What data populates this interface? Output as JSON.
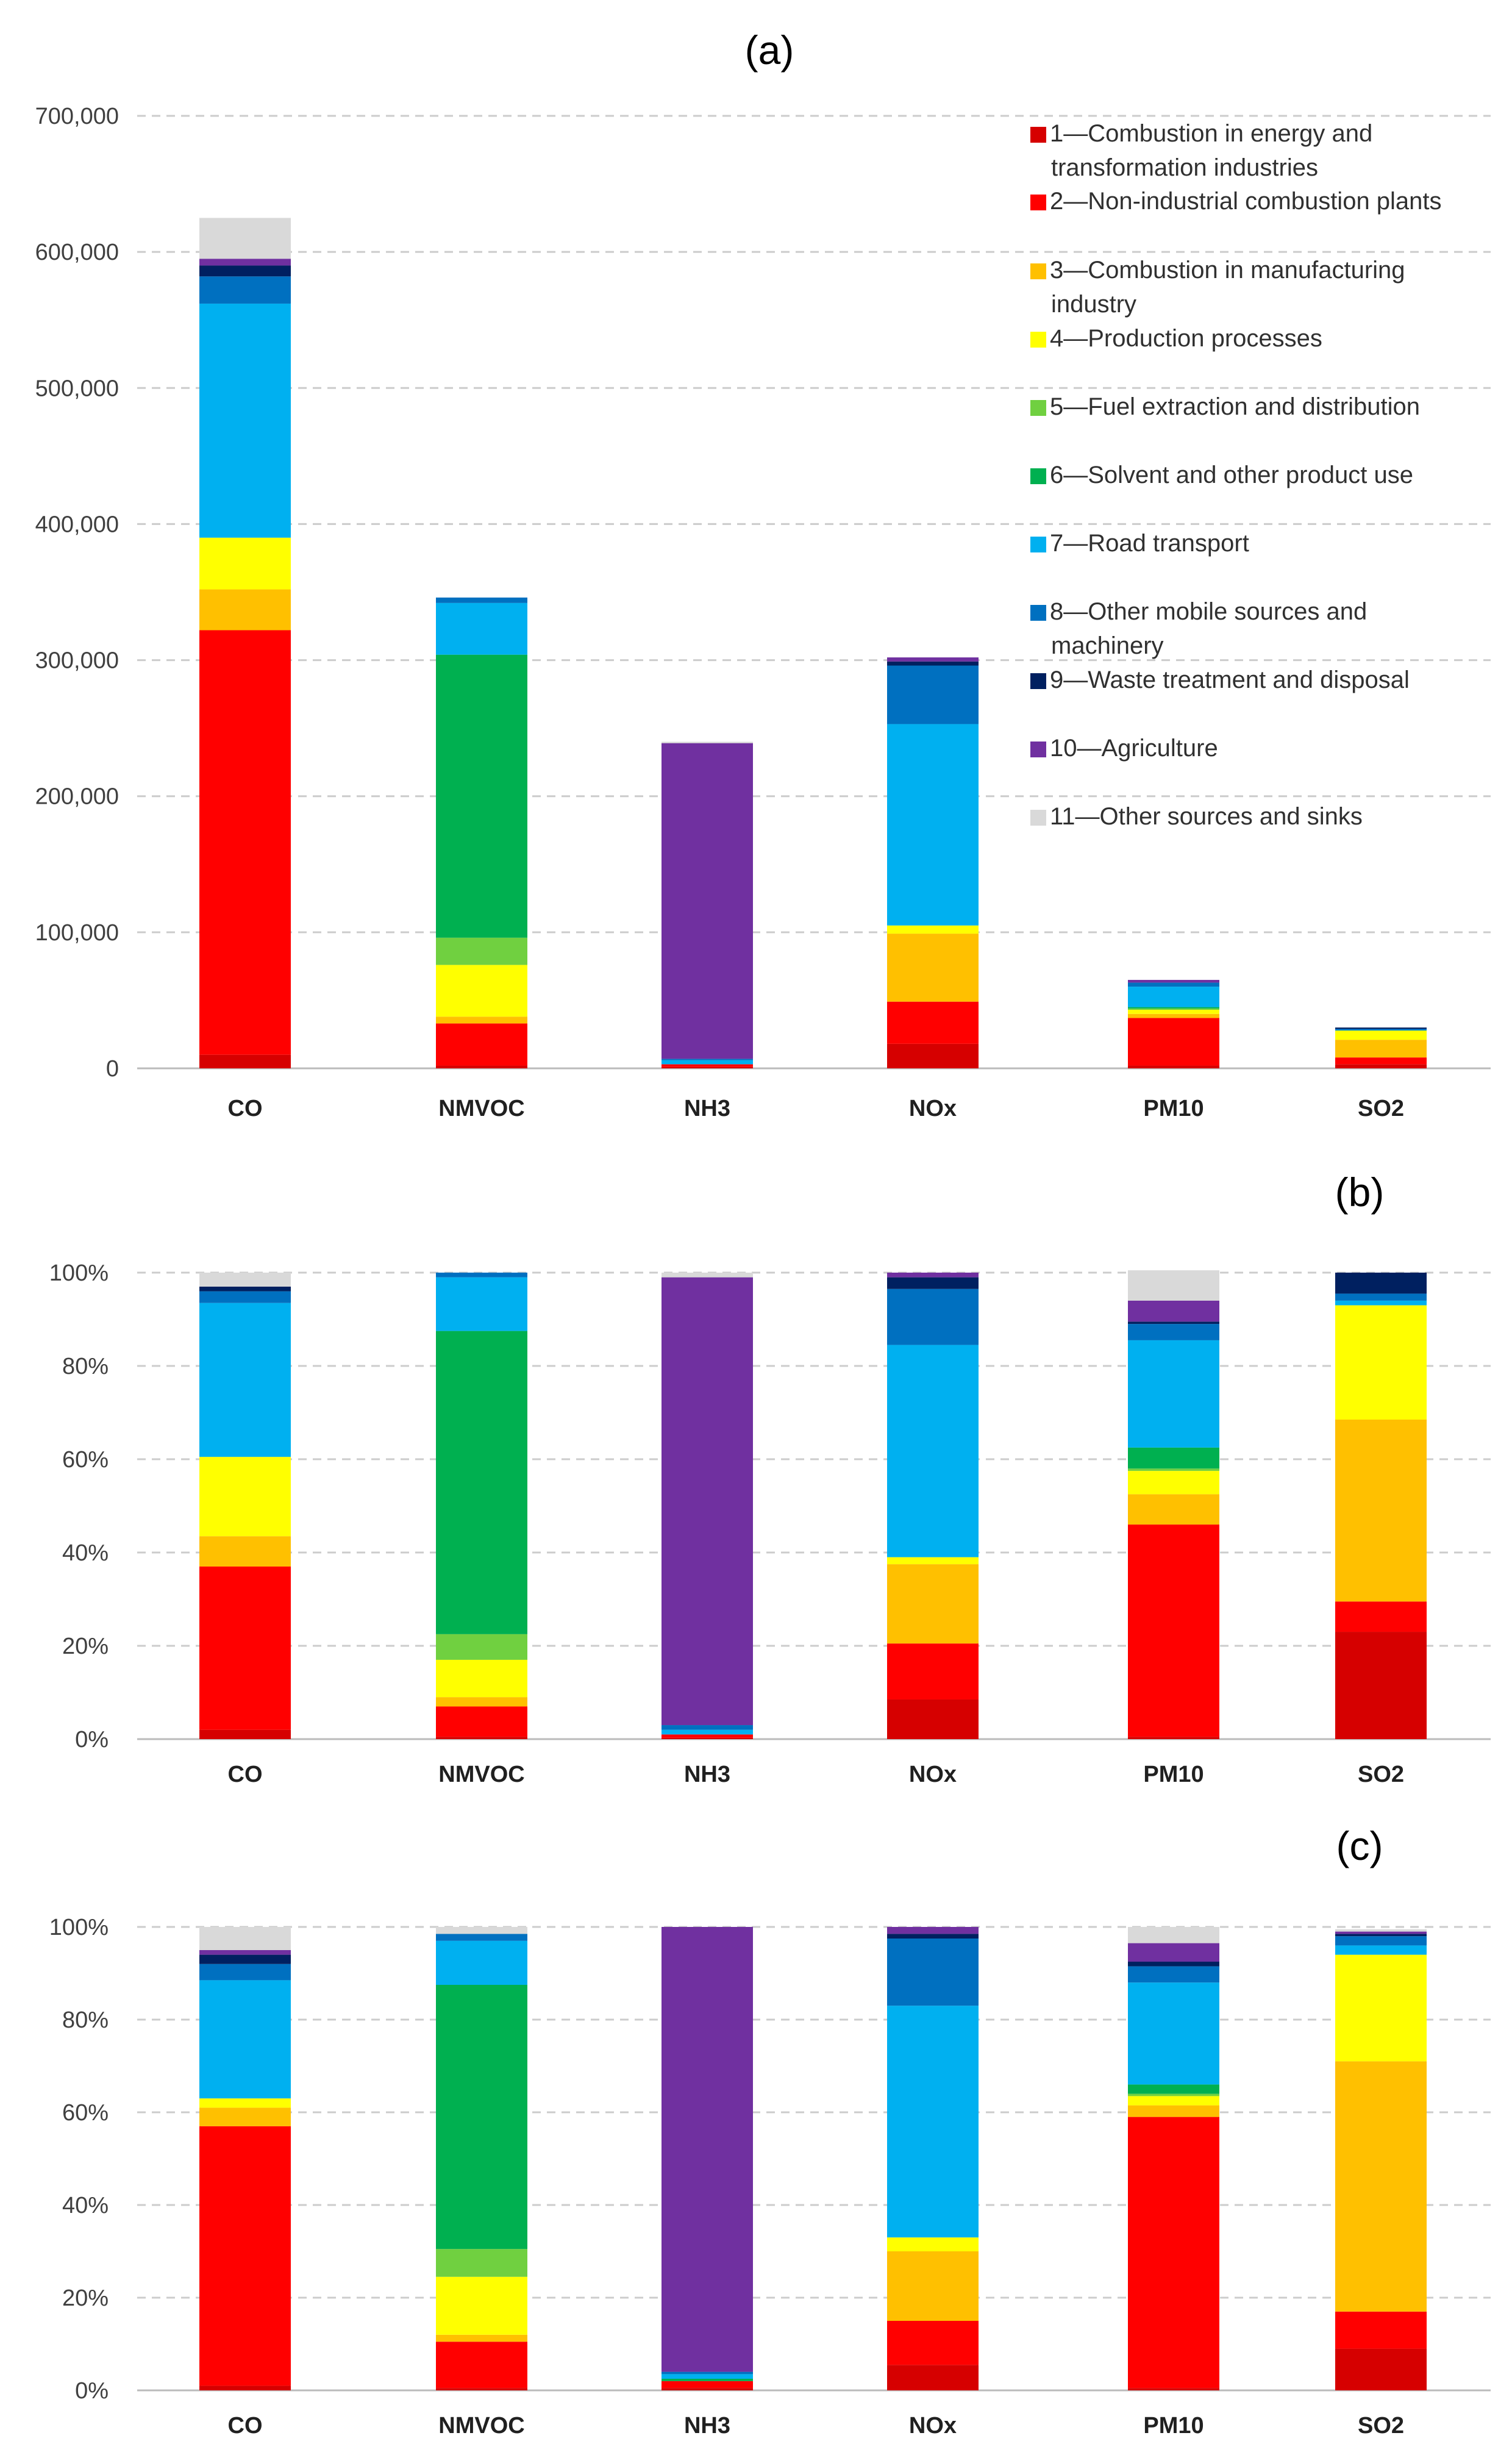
{
  "source_categories": [
    {
      "id": "s1",
      "color": "#d60000",
      "lines": [
        "1—Combustion in energy and",
        "transformation industries"
      ]
    },
    {
      "id": "s2",
      "color": "#ff0000",
      "lines": [
        "2—Non-industrial combustion plants"
      ]
    },
    {
      "id": "s3",
      "color": "#ffc000",
      "lines": [
        "3—Combustion in manufacturing",
        "industry"
      ]
    },
    {
      "id": "s4",
      "color": "#ffff00",
      "lines": [
        "4—Production processes"
      ]
    },
    {
      "id": "s5",
      "color": "#70d040",
      "lines": [
        "5—Fuel extraction and distribution"
      ]
    },
    {
      "id": "s6",
      "color": "#00b050",
      "lines": [
        "6—Solvent and other product use"
      ]
    },
    {
      "id": "s7",
      "color": "#00b0f0",
      "lines": [
        "7—Road transport"
      ]
    },
    {
      "id": "s8",
      "color": "#0070c0",
      "lines": [
        "8—Other mobile sources and",
        "machinery"
      ]
    },
    {
      "id": "s9",
      "color": "#002060",
      "lines": [
        "9—Waste treatment and disposal"
      ]
    },
    {
      "id": "s10",
      "color": "#7030a0",
      "lines": [
        "10—Agriculture"
      ]
    },
    {
      "id": "s11",
      "color": "#d9d9d9",
      "lines": [
        "11—Other sources and sinks"
      ]
    }
  ],
  "chart_data": [
    {
      "type": "bar",
      "stacked": true,
      "panel_label": "(a)",
      "categories": [
        "CO",
        "NMVOC",
        "NH3",
        "NOx",
        "PM10",
        "SO2"
      ],
      "ylim": [
        0,
        700000
      ],
      "yticks": [
        "0",
        "100,000",
        "200,000",
        "300,000",
        "400,000",
        "500,000",
        "600,000",
        "700,000"
      ],
      "ytick_values": [
        0,
        100000,
        200000,
        300000,
        400000,
        500000,
        600000,
        700000
      ],
      "grid": true,
      "legend": "top-right",
      "series": [
        {
          "name": "1—Combustion in energy and transformation industries",
          "values": [
            10000,
            2000,
            1000,
            18000,
            2000,
            3000
          ]
        },
        {
          "name": "2—Non-industrial combustion plants",
          "values": [
            312000,
            31000,
            2000,
            31000,
            35000,
            5000
          ]
        },
        {
          "name": "3—Combustion in manufacturing industry",
          "values": [
            30000,
            5000,
            0,
            50000,
            3000,
            13000
          ]
        },
        {
          "name": "4—Production processes",
          "values": [
            38000,
            38000,
            0,
            6000,
            3000,
            7000
          ]
        },
        {
          "name": "5—Fuel extraction and distribution",
          "values": [
            0,
            20000,
            0,
            0,
            1000,
            0
          ]
        },
        {
          "name": "6—Solvent and other product use",
          "values": [
            0,
            208000,
            0,
            0,
            1000,
            0
          ]
        },
        {
          "name": "7—Road transport",
          "values": [
            172000,
            38000,
            3000,
            148000,
            15000,
            0.5
          ]
        },
        {
          "name": "8—Other mobile sources and machinery",
          "values": [
            20000,
            4000,
            1000,
            43000,
            3000,
            1000
          ]
        },
        {
          "name": "9—Waste treatment and disposal",
          "values": [
            8000,
            0,
            0,
            3000,
            0,
            1000
          ]
        },
        {
          "name": "10—Agriculture",
          "values": [
            5000,
            0,
            232000,
            3000,
            2000,
            0
          ]
        },
        {
          "name": "11—Other sources and sinks",
          "values": [
            30000,
            0,
            1000,
            0,
            0,
            0
          ]
        }
      ]
    },
    {
      "type": "bar",
      "stacked": true,
      "panel_label": "(b)",
      "categories": [
        "CO",
        "NMVOC",
        "NH3",
        "NOx",
        "PM10",
        "SO2"
      ],
      "ylim": [
        0,
        100
      ],
      "yticks": [
        "0%",
        "20%",
        "40%",
        "60%",
        "80%",
        "100%"
      ],
      "ytick_values": [
        0,
        20,
        40,
        60,
        80,
        100
      ],
      "grid": true,
      "series": [
        {
          "name": "1—Combustion in energy and transformation industries",
          "values": [
            2,
            0.5,
            0.3,
            8.5,
            0.5,
            23
          ]
        },
        {
          "name": "2—Non-industrial combustion plants",
          "values": [
            35,
            6.5,
            0.7,
            12,
            45.5,
            6.5
          ]
        },
        {
          "name": "3—Combustion in manufacturing industry",
          "values": [
            6.5,
            2,
            0,
            17,
            6.5,
            39
          ]
        },
        {
          "name": "4—Production processes",
          "values": [
            17,
            8,
            0,
            1.5,
            5,
            24.5
          ]
        },
        {
          "name": "5—Fuel extraction and distribution",
          "values": [
            0,
            5.5,
            0,
            0,
            0.5,
            0
          ]
        },
        {
          "name": "6—Solvent and other product use",
          "values": [
            0,
            65,
            0,
            0,
            4.5,
            0
          ]
        },
        {
          "name": "7—Road transport",
          "values": [
            33,
            11.5,
            1,
            45.5,
            23,
            1
          ]
        },
        {
          "name": "8—Other mobile sources and machinery",
          "values": [
            2.5,
            1,
            1,
            12,
            3.5,
            1.5
          ]
        },
        {
          "name": "9—Waste treatment and disposal",
          "values": [
            1,
            0,
            0,
            2.5,
            0.5,
            4.5
          ]
        },
        {
          "name": "10—Agriculture",
          "values": [
            0,
            0,
            96,
            1,
            4.5,
            0
          ]
        },
        {
          "name": "11—Other sources and sinks",
          "values": [
            3,
            0,
            1,
            0,
            6.5,
            0
          ]
        }
      ]
    },
    {
      "type": "bar",
      "stacked": true,
      "panel_label": "(c)",
      "categories": [
        "CO",
        "NMVOC",
        "NH3",
        "NOx",
        "PM10",
        "SO2"
      ],
      "ylim": [
        0,
        100
      ],
      "yticks": [
        "0%",
        "20%",
        "40%",
        "60%",
        "80%",
        "100%"
      ],
      "ytick_values": [
        0,
        20,
        40,
        60,
        80,
        100
      ],
      "grid": true,
      "series": [
        {
          "name": "1—Combustion in energy and transformation industries",
          "values": [
            1,
            0.5,
            0.5,
            5.5,
            0.5,
            9
          ]
        },
        {
          "name": "2—Non-industrial combustion plants",
          "values": [
            56,
            10,
            1.5,
            9.5,
            58.5,
            8
          ]
        },
        {
          "name": "3—Combustion in manufacturing industry",
          "values": [
            4,
            1.5,
            0,
            15,
            2.5,
            54
          ]
        },
        {
          "name": "4—Production processes",
          "values": [
            2,
            12.5,
            0,
            3,
            2,
            23
          ]
        },
        {
          "name": "5—Fuel extraction and distribution",
          "values": [
            0,
            6,
            0,
            0,
            0.5,
            0
          ]
        },
        {
          "name": "6—Solvent and other product use",
          "values": [
            0,
            57,
            0.5,
            0,
            2,
            0
          ]
        },
        {
          "name": "7—Road transport",
          "values": [
            25.5,
            9.5,
            1,
            50,
            22,
            2
          ]
        },
        {
          "name": "8—Other mobile sources and machinery",
          "values": [
            3.5,
            1.5,
            0.5,
            14.5,
            3.5,
            2
          ]
        },
        {
          "name": "9—Waste treatment and disposal",
          "values": [
            2,
            0,
            0,
            1,
            1,
            0.5
          ]
        },
        {
          "name": "10—Agriculture",
          "values": [
            1,
            0,
            96,
            1.5,
            4,
            0.5
          ]
        },
        {
          "name": "11—Other sources and sinks",
          "values": [
            5,
            1.5,
            0,
            0,
            3.5,
            0.5
          ]
        }
      ]
    }
  ]
}
